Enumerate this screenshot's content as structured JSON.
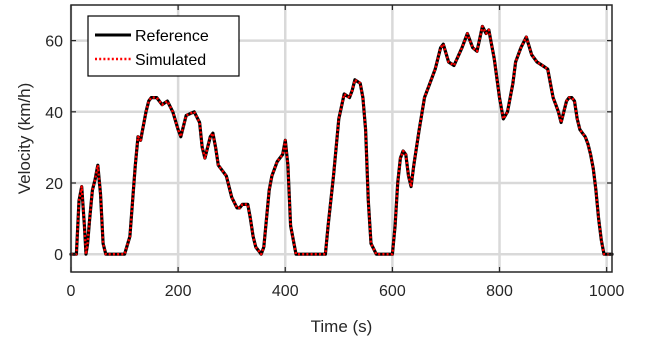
{
  "chart_data": {
    "type": "line",
    "title": "",
    "xlabel": "Time (s)",
    "ylabel": "Velocity (km/h)",
    "xlim": [
      0,
      1010
    ],
    "ylim": [
      -5,
      70
    ],
    "xticks": [
      0,
      200,
      400,
      600,
      800,
      1000
    ],
    "yticks": [
      0,
      20,
      40,
      60
    ],
    "grid": true,
    "legend_position": "top-left",
    "series": [
      {
        "name": "Reference",
        "color": "#000000",
        "style": "solid",
        "x": [
          0,
          10,
          15,
          20,
          25,
          28,
          31,
          35,
          40,
          45,
          50,
          55,
          60,
          65,
          70,
          80,
          90,
          100,
          110,
          115,
          120,
          125,
          130,
          140,
          145,
          150,
          160,
          170,
          180,
          190,
          200,
          205,
          215,
          230,
          240,
          245,
          250,
          260,
          265,
          270,
          275,
          280,
          290,
          300,
          310,
          315,
          320,
          330,
          335,
          340,
          345,
          350,
          355,
          360,
          365,
          370,
          375,
          385,
          395,
          400,
          405,
          410,
          420,
          440,
          460,
          475,
          480,
          490,
          500,
          510,
          520,
          525,
          530,
          540,
          545,
          550,
          555,
          560,
          570,
          580,
          590,
          600,
          605,
          610,
          615,
          620,
          625,
          630,
          635,
          640,
          650,
          660,
          670,
          680,
          690,
          695,
          705,
          715,
          730,
          740,
          750,
          758,
          768,
          775,
          780,
          790,
          800,
          807,
          815,
          820,
          825,
          830,
          840,
          850,
          860,
          870,
          880,
          890,
          895,
          900,
          905,
          910,
          915,
          920,
          925,
          930,
          935,
          940,
          945,
          950,
          955,
          960,
          965,
          970,
          975,
          980,
          985,
          990,
          995,
          1000,
          1010
        ],
        "y": [
          0,
          0,
          15,
          19,
          8,
          0,
          3,
          10,
          18,
          21,
          25,
          17,
          3,
          0,
          0,
          0,
          0,
          0,
          5,
          15,
          25,
          33,
          32,
          40,
          43,
          44,
          44,
          42,
          43,
          40,
          35,
          33,
          39,
          40,
          37,
          30,
          27,
          33,
          34,
          30,
          25,
          24,
          22,
          16,
          13,
          13,
          14,
          14,
          10,
          5,
          2,
          1,
          0,
          2,
          10,
          18,
          22,
          26,
          28,
          32,
          25,
          8,
          0,
          0,
          0,
          0,
          8,
          22,
          38,
          45,
          44,
          46,
          49,
          48,
          44,
          35,
          15,
          3,
          0,
          0,
          0,
          0,
          8,
          20,
          27,
          29,
          28,
          22,
          19,
          25,
          35,
          44,
          48,
          52,
          58,
          59,
          54,
          53,
          58,
          62,
          58,
          57,
          64,
          62,
          63,
          55,
          44,
          38,
          40,
          44,
          48,
          54,
          58,
          61,
          56,
          54,
          53,
          52,
          48,
          44,
          42,
          40,
          37,
          40,
          43,
          44,
          44,
          43,
          38,
          35,
          34,
          33,
          31,
          28,
          24,
          18,
          10,
          4,
          0,
          0,
          0
        ]
      },
      {
        "name": "Simulated",
        "color": "#ff0000",
        "style": "dotted",
        "x": [
          0,
          10,
          15,
          20,
          25,
          28,
          31,
          35,
          40,
          45,
          50,
          55,
          60,
          65,
          70,
          80,
          90,
          100,
          110,
          115,
          120,
          125,
          130,
          140,
          145,
          150,
          160,
          170,
          180,
          190,
          200,
          205,
          215,
          230,
          240,
          245,
          250,
          260,
          265,
          270,
          275,
          280,
          290,
          300,
          310,
          315,
          320,
          330,
          335,
          340,
          345,
          350,
          355,
          360,
          365,
          370,
          375,
          385,
          395,
          400,
          405,
          410,
          420,
          440,
          460,
          475,
          480,
          490,
          500,
          510,
          520,
          525,
          530,
          540,
          545,
          550,
          555,
          560,
          570,
          580,
          590,
          600,
          605,
          610,
          615,
          620,
          625,
          630,
          635,
          640,
          650,
          660,
          670,
          680,
          690,
          695,
          705,
          715,
          730,
          740,
          750,
          758,
          768,
          775,
          780,
          790,
          800,
          807,
          815,
          820,
          825,
          830,
          840,
          850,
          860,
          870,
          880,
          890,
          895,
          900,
          905,
          910,
          915,
          920,
          925,
          930,
          935,
          940,
          945,
          950,
          955,
          960,
          965,
          970,
          975,
          980,
          985,
          990,
          995,
          1000,
          1010
        ],
        "y": [
          0,
          0,
          15,
          19,
          8,
          0,
          3,
          10,
          18,
          21,
          25,
          17,
          3,
          0,
          0,
          0,
          0,
          0,
          5,
          15,
          25,
          33,
          32,
          40,
          43,
          44,
          44,
          42,
          43,
          40,
          35,
          33,
          39,
          40,
          37,
          30,
          27,
          33,
          34,
          30,
          25,
          24,
          22,
          16,
          13,
          13,
          14,
          14,
          10,
          5,
          2,
          1,
          0,
          2,
          10,
          18,
          22,
          26,
          28,
          32,
          25,
          8,
          0,
          0,
          0,
          0,
          8,
          22,
          38,
          45,
          44,
          46,
          49,
          48,
          44,
          35,
          15,
          3,
          0,
          0,
          0,
          0,
          8,
          20,
          27,
          29,
          28,
          22,
          19,
          25,
          35,
          44,
          48,
          52,
          58,
          59,
          54,
          53,
          58,
          62,
          58,
          57,
          64,
          62,
          63,
          55,
          44,
          38,
          40,
          44,
          48,
          54,
          58,
          61,
          56,
          54,
          53,
          52,
          48,
          44,
          42,
          40,
          37,
          40,
          43,
          44,
          44,
          43,
          38,
          35,
          34,
          33,
          31,
          28,
          24,
          18,
          10,
          4,
          0,
          0,
          0
        ]
      }
    ]
  }
}
